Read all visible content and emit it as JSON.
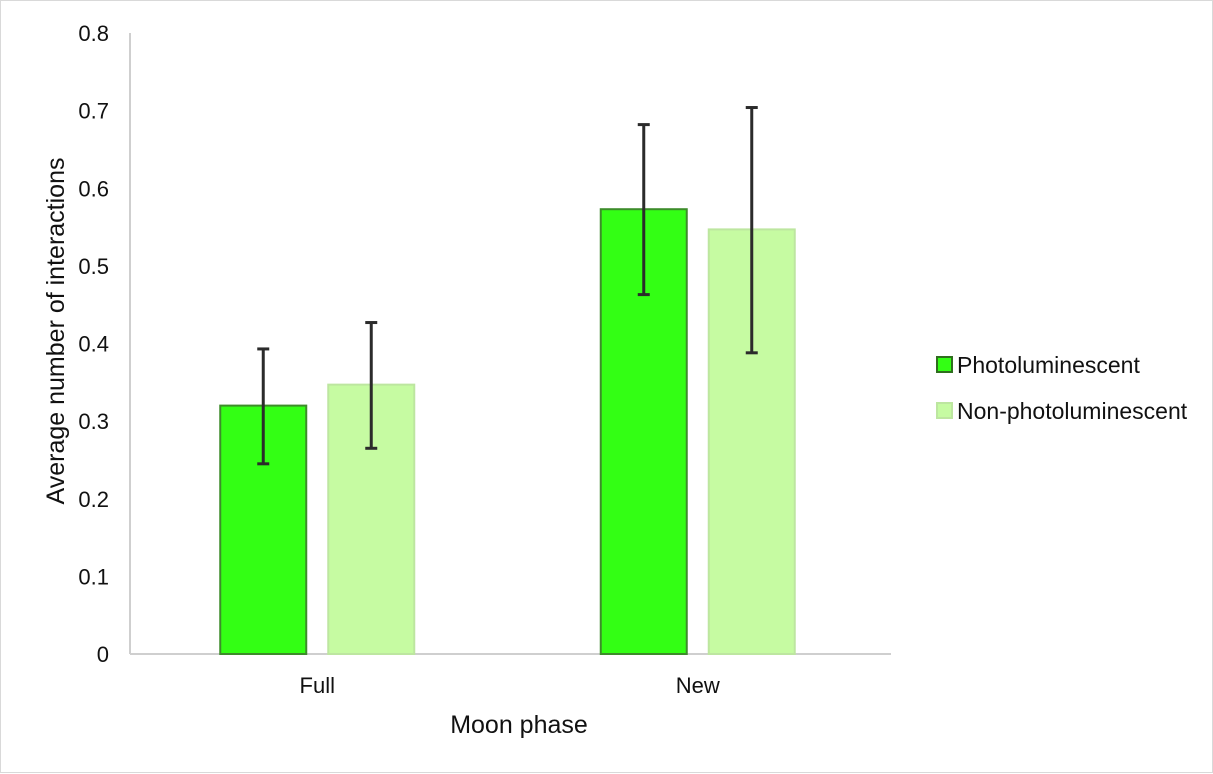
{
  "chart_data": {
    "type": "bar",
    "title": "",
    "xlabel": "Moon phase",
    "ylabel": "Average number of interactions",
    "categories": [
      "Full",
      "New"
    ],
    "ylim": [
      0,
      0.8
    ],
    "yticks": [
      0,
      0.1,
      0.2,
      0.3,
      0.4,
      0.5,
      0.6,
      0.7,
      0.8
    ],
    "ytick_labels": [
      "0",
      "0.1",
      "0.2",
      "0.3",
      "0.4",
      "0.5",
      "0.6",
      "0.7",
      "0.8"
    ],
    "grid": false,
    "legend_position": "right",
    "series": [
      {
        "name": "Photoluminescent",
        "values": [
          0.32,
          0.573
        ],
        "error_low": [
          0.245,
          0.463
        ],
        "error_high": [
          0.393,
          0.682
        ],
        "color": "#33ff14",
        "edge_color": "#3d8c2a"
      },
      {
        "name": "Non-photoluminescent",
        "values": [
          0.347,
          0.547
        ],
        "error_low": [
          0.265,
          0.388
        ],
        "error_high": [
          0.427,
          0.704
        ],
        "color": "#c6fba2",
        "edge_color": "#bde6a0"
      }
    ]
  }
}
